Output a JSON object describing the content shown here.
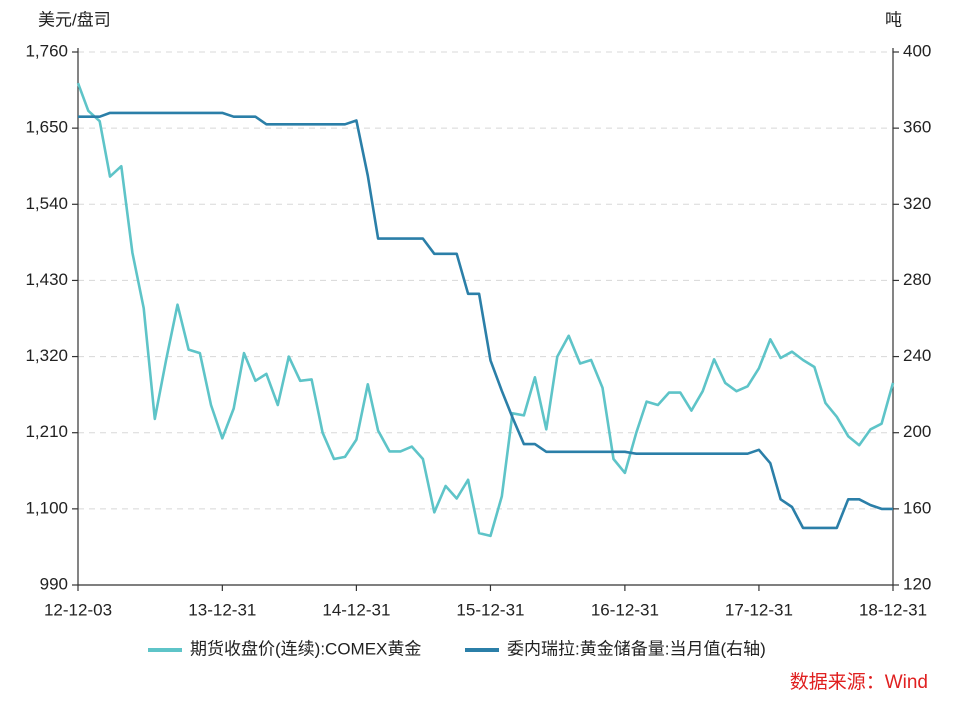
{
  "chart_data": {
    "type": "line",
    "y_label": "美元/盘司",
    "y2_label": "吨",
    "source": "数据来源：Wind",
    "x": [
      "12-12-03",
      "12-12-31",
      "13-01-31",
      "13-02-28",
      "13-03-31",
      "13-04-30",
      "13-05-31",
      "13-06-30",
      "13-07-31",
      "13-08-31",
      "13-09-30",
      "13-10-31",
      "13-11-30",
      "13-12-31",
      "14-01-31",
      "14-02-28",
      "14-03-31",
      "14-04-30",
      "14-05-31",
      "14-06-30",
      "14-07-31",
      "14-08-31",
      "14-09-30",
      "14-10-31",
      "14-11-30",
      "14-12-31",
      "15-01-31",
      "15-02-28",
      "15-03-31",
      "15-04-30",
      "15-05-31",
      "15-06-30",
      "15-07-31",
      "15-08-31",
      "15-09-30",
      "15-10-31",
      "15-11-30",
      "15-12-31",
      "16-01-31",
      "16-02-29",
      "16-03-31",
      "16-04-30",
      "16-05-31",
      "16-06-30",
      "16-07-31",
      "16-08-31",
      "16-09-30",
      "16-10-31",
      "16-11-30",
      "16-12-31",
      "17-01-31",
      "17-02-28",
      "17-03-31",
      "17-04-30",
      "17-05-31",
      "17-06-30",
      "17-07-31",
      "17-08-31",
      "17-09-30",
      "17-10-31",
      "17-11-30",
      "17-12-31",
      "18-01-31",
      "18-02-28",
      "18-03-31",
      "18-04-30",
      "18-05-31",
      "18-06-30",
      "18-07-31",
      "18-08-31",
      "18-09-30",
      "18-10-31",
      "18-11-30",
      "18-12-31"
    ],
    "xlim": [
      "12-12-03",
      "18-12-31"
    ],
    "xticks": [
      "12-12-03",
      "13-12-31",
      "14-12-31",
      "15-12-31",
      "16-12-31",
      "17-12-31",
      "18-12-31"
    ],
    "ylim": [
      990,
      1760
    ],
    "yticks": [
      990,
      {
        "value": 1100,
        "label": "1,100"
      },
      {
        "value": 1210,
        "label": "1,210"
      },
      {
        "value": 1320,
        "label": "1,320"
      },
      {
        "value": 1430,
        "label": "1,430"
      },
      {
        "value": 1540,
        "label": "1,540"
      },
      {
        "value": 1650,
        "label": "1,650"
      },
      {
        "value": 1760,
        "label": "1,760"
      }
    ],
    "y2lim": [
      120,
      400
    ],
    "y2ticks": [
      120,
      160,
      200,
      240,
      280,
      320,
      360,
      400
    ],
    "grid": true,
    "series": [
      {
        "name": "期货收盘价(连续):COMEX黄金",
        "color": "#5ec4c8",
        "values": [
          1715,
          1675,
          1660,
          1580,
          1595,
          1470,
          1390,
          1230,
          1315,
          1395,
          1330,
          1325,
          1250,
          1202,
          1245,
          1325,
          1285,
          1295,
          1250,
          1320,
          1285,
          1287,
          1210,
          1172,
          1175,
          1200,
          1280,
          1213,
          1183,
          1183,
          1190,
          1172,
          1095,
          1133,
          1115,
          1142,
          1065,
          1061,
          1118,
          1238,
          1235,
          1290,
          1215,
          1320,
          1350,
          1310,
          1315,
          1275,
          1172,
          1152,
          1210,
          1255,
          1250,
          1268,
          1268,
          1242,
          1270,
          1316,
          1282,
          1270,
          1277,
          1303,
          1345,
          1318,
          1327,
          1315,
          1305,
          1253,
          1233,
          1205,
          1192,
          1215,
          1223,
          1282
        ]
      },
      {
        "name": "委内瑞拉:黄金储备量:当月值(右轴)",
        "color": "#2b7fa8",
        "axis": "y2",
        "values": [
          366,
          366,
          366,
          368,
          368,
          368,
          368,
          368,
          368,
          368,
          368,
          368,
          368,
          368,
          366,
          366,
          366,
          362,
          362,
          362,
          362,
          362,
          362,
          362,
          362,
          364,
          335,
          302,
          302,
          302,
          302,
          302,
          294,
          294,
          294,
          273,
          273,
          238,
          222,
          208,
          194,
          194,
          190,
          190,
          190,
          190,
          190,
          190,
          190,
          190,
          189,
          189,
          189,
          189,
          189,
          189,
          189,
          189,
          189,
          189,
          189,
          191,
          184,
          165,
          161,
          150,
          150,
          150,
          150,
          165,
          165,
          162,
          160,
          160
        ]
      }
    ]
  }
}
